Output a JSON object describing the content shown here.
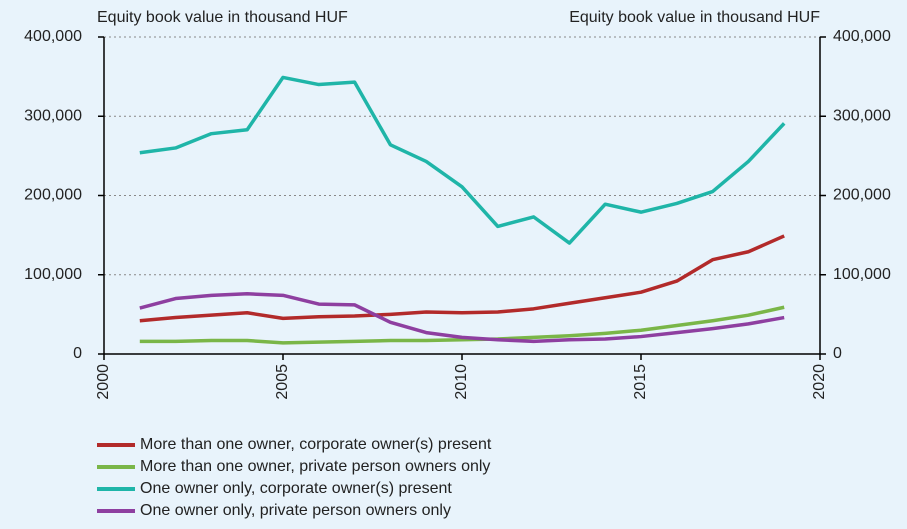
{
  "chart_data": {
    "type": "line",
    "y_label_left": "Equity book value in thousand HUF",
    "y_label_right": "Equity book value in thousand HUF",
    "x": [
      2001,
      2002,
      2003,
      2004,
      2005,
      2006,
      2007,
      2008,
      2009,
      2010,
      2011,
      2012,
      2013,
      2014,
      2015,
      2016,
      2017,
      2018,
      2019
    ],
    "xlim": [
      2000,
      2020
    ],
    "xticks": [
      2000,
      2005,
      2010,
      2015,
      2020
    ],
    "ylim": [
      0,
      400000
    ],
    "yticks": [
      0,
      {
        "value": 100000,
        "label": "100,000"
      },
      {
        "value": 200000,
        "label": "200,000"
      },
      {
        "value": 300000,
        "label": "300,000"
      },
      {
        "value": 400000,
        "label": "400,000"
      }
    ],
    "y2lim": [
      0,
      400000
    ],
    "y2ticks": [
      0,
      {
        "value": 100000,
        "label": "100,000"
      },
      {
        "value": 200000,
        "label": "200,000"
      },
      {
        "value": 300000,
        "label": "300,000"
      },
      {
        "value": 400000,
        "label": "400,000"
      }
    ],
    "grid": true,
    "series": [
      {
        "name": "More than one owner, corporate owner(s) present",
        "color": "#b22a2a",
        "values": [
          42000,
          46000,
          49000,
          52000,
          45000,
          47000,
          48000,
          50000,
          53000,
          52000,
          53000,
          57000,
          64000,
          71000,
          78000,
          92000,
          119000,
          129000,
          149000
        ]
      },
      {
        "name": "More than one owner, private person owners only",
        "color": "#7ab648",
        "values": [
          16000,
          16000,
          17000,
          17000,
          14000,
          15000,
          16000,
          17000,
          17000,
          18000,
          19000,
          21000,
          23000,
          26000,
          30000,
          36000,
          42000,
          49000,
          59000
        ]
      },
      {
        "name": "One owner only, corporate owner(s) present",
        "color": "#1fb5a8",
        "values": [
          254000,
          260000,
          278000,
          283000,
          349000,
          340000,
          343000,
          264000,
          243000,
          211000,
          161000,
          173000,
          140000,
          189000,
          179000,
          190000,
          205000,
          243000,
          291000
        ]
      },
      {
        "name": "One owner only, private person owners only",
        "color": "#8e3fa0",
        "values": [
          58000,
          70000,
          74000,
          76000,
          74000,
          63000,
          62000,
          40000,
          27000,
          21000,
          18000,
          16000,
          18000,
          19000,
          22000,
          27000,
          32000,
          38000,
          46000
        ]
      }
    ]
  }
}
